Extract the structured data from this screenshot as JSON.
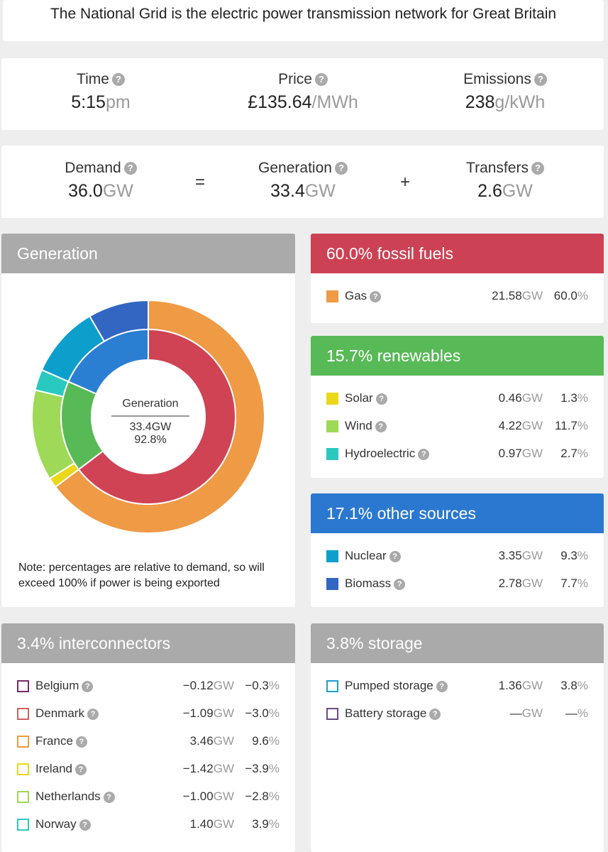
{
  "banner": {
    "text": "The National Grid is the electric power transmission network for Great Britain"
  },
  "stats": {
    "time": {
      "label": "Time",
      "value": "5:15",
      "unit": "pm"
    },
    "price": {
      "label": "Price",
      "value": "£135.64",
      "unit": "/MWh"
    },
    "emissions": {
      "label": "Emissions",
      "value": "238",
      "unit": "g/kWh"
    }
  },
  "balance": {
    "demand": {
      "label": "Demand",
      "value": "36.0",
      "unit": "GW"
    },
    "equals": "=",
    "generation": {
      "label": "Generation",
      "value": "33.4",
      "unit": "GW"
    },
    "plus": "+",
    "transfers": {
      "label": "Transfers",
      "value": "2.6",
      "unit": "GW"
    }
  },
  "help_icon": "?",
  "generation_panel": {
    "title": "Generation",
    "center_label": "Generation",
    "center_value": "33.4GW",
    "center_pct": "92.8%",
    "note": "Note: percentages are relative to demand, so will exceed 100% if power is being exported",
    "inner_ring": [
      {
        "name": "fossil",
        "share": 0.647,
        "color": "#cf4355"
      },
      {
        "name": "renewables",
        "share": 0.169,
        "color": "#58b957"
      },
      {
        "name": "other",
        "share": 0.184,
        "color": "#2b7fd3"
      }
    ],
    "outer_ring": [
      {
        "name": "Gas",
        "share": 0.647,
        "color": "#ef9a45"
      },
      {
        "name": "Solar",
        "share": 0.014,
        "color": "#ead81a"
      },
      {
        "name": "Wind",
        "share": 0.126,
        "color": "#9ed957"
      },
      {
        "name": "Hydroelectric",
        "share": 0.029,
        "color": "#2ac9c0"
      },
      {
        "name": "Nuclear",
        "share": 0.1,
        "color": "#0d9fcc"
      },
      {
        "name": "Biomass",
        "share": 0.084,
        "color": "#3366c2"
      }
    ]
  },
  "fossil": {
    "title": "60.0% fossil fuels",
    "color": "#cc4254",
    "items": [
      {
        "name": "Gas",
        "gw": "21.58",
        "pct": "60.0",
        "color": "#ef9a45"
      }
    ]
  },
  "renewables": {
    "title": "15.7% renewables",
    "color": "#58b957",
    "items": [
      {
        "name": "Solar",
        "gw": "0.46",
        "pct": "1.3",
        "color": "#ead81a"
      },
      {
        "name": "Wind",
        "gw": "4.22",
        "pct": "11.7",
        "color": "#9ed957"
      },
      {
        "name": "Hydroelectric",
        "gw": "0.97",
        "pct": "2.7",
        "color": "#2ac9c0"
      }
    ]
  },
  "other": {
    "title": "17.1% other sources",
    "color": "#2b78d0",
    "items": [
      {
        "name": "Nuclear",
        "gw": "3.35",
        "pct": "9.3",
        "color": "#0d9fcc"
      },
      {
        "name": "Biomass",
        "gw": "2.78",
        "pct": "7.7",
        "color": "#3366c2"
      }
    ]
  },
  "interconnectors": {
    "title": "3.4% interconnectors",
    "color": "#aaaaaa",
    "items": [
      {
        "name": "Belgium",
        "gw": "−0.12",
        "pct": "−0.3",
        "color": "#7a2a6a"
      },
      {
        "name": "Denmark",
        "gw": "−1.09",
        "pct": "−3.0",
        "color": "#d06060"
      },
      {
        "name": "France",
        "gw": "3.46",
        "pct": "9.6",
        "color": "#ef9a45"
      },
      {
        "name": "Ireland",
        "gw": "−1.42",
        "pct": "−3.9",
        "color": "#ead81a"
      },
      {
        "name": "Netherlands",
        "gw": "−1.00",
        "pct": "−2.8",
        "color": "#9ed957"
      },
      {
        "name": "Norway",
        "gw": "1.40",
        "pct": "3.9",
        "color": "#2ac9c0"
      }
    ]
  },
  "storage": {
    "title": "3.8% storage",
    "color": "#aaaaaa",
    "items": [
      {
        "name": "Pumped storage",
        "gw": "1.36",
        "pct": "3.8",
        "color": "#1c9fd0"
      },
      {
        "name": "Battery storage",
        "gw": "—",
        "pct": "—",
        "color": "#6b4a8a"
      }
    ]
  },
  "units": {
    "gw": "GW",
    "pct": "%"
  }
}
